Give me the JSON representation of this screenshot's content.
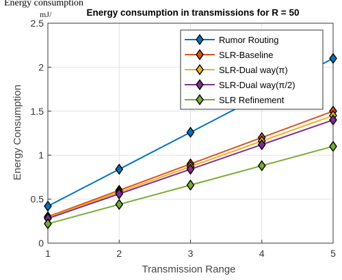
{
  "overlay": {
    "caption_fragment": "Energy consumption",
    "unit_fragment": "mJ/"
  },
  "chart_data": {
    "type": "line",
    "title": "Energy consumption in transmissions  for R = 50",
    "xlabel": "Transmission Range",
    "ylabel": "Energy Consumption",
    "x": [
      1,
      2,
      3,
      4,
      5
    ],
    "xlim": [
      1,
      5
    ],
    "ylim": [
      0,
      2.5
    ],
    "xticks": [
      "1",
      "2",
      "3",
      "4",
      "5"
    ],
    "yticks": [
      "0",
      "0.5",
      "1",
      "1.5",
      "2",
      "2.5"
    ],
    "grid": true,
    "legend_position": "top-right",
    "series": [
      {
        "name": "Rumor Routing",
        "color": "#0072BD",
        "values": [
          0.42,
          0.84,
          1.26,
          1.68,
          2.1
        ]
      },
      {
        "name": "SLR-Baseline",
        "color": "#D95319",
        "values": [
          0.3,
          0.6,
          0.9,
          1.2,
          1.5
        ]
      },
      {
        "name": "SLR-Dual  way(π)",
        "color": "#EDB120",
        "values": [
          0.29,
          0.58,
          0.87,
          1.16,
          1.45
        ]
      },
      {
        "name": "SLR-Dual  way(π/2)",
        "color": "#7E2F8E",
        "values": [
          0.28,
          0.56,
          0.84,
          1.12,
          1.4
        ]
      },
      {
        "name": "SLR Refinement",
        "color": "#77AC30",
        "values": [
          0.22,
          0.44,
          0.66,
          0.88,
          1.1
        ]
      }
    ]
  }
}
